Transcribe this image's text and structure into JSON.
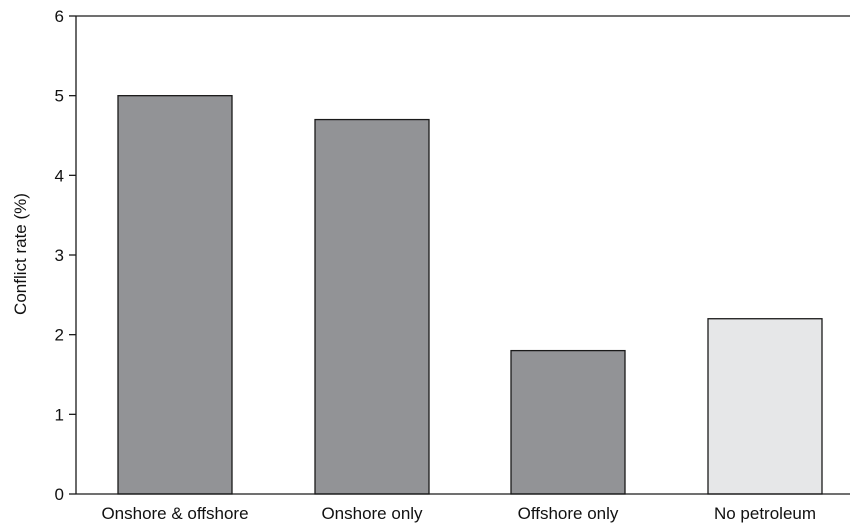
{
  "chart_data": {
    "type": "bar",
    "title": "",
    "xlabel": "",
    "ylabel": "Conflict rate (%)",
    "ylim": [
      0,
      6
    ],
    "yticks": [
      0,
      1,
      2,
      3,
      4,
      5,
      6
    ],
    "grid": false,
    "categories": [
      "Onshore & offshore",
      "Onshore only",
      "Offshore only",
      "No petroleum"
    ],
    "values": [
      5.0,
      4.7,
      1.8,
      2.2
    ],
    "bar_colors": [
      "#929396",
      "#929396",
      "#929396",
      "#e6e7e8"
    ],
    "bar_outline_color": "#1a1a1a",
    "axis_color": "#1a1a1a"
  }
}
